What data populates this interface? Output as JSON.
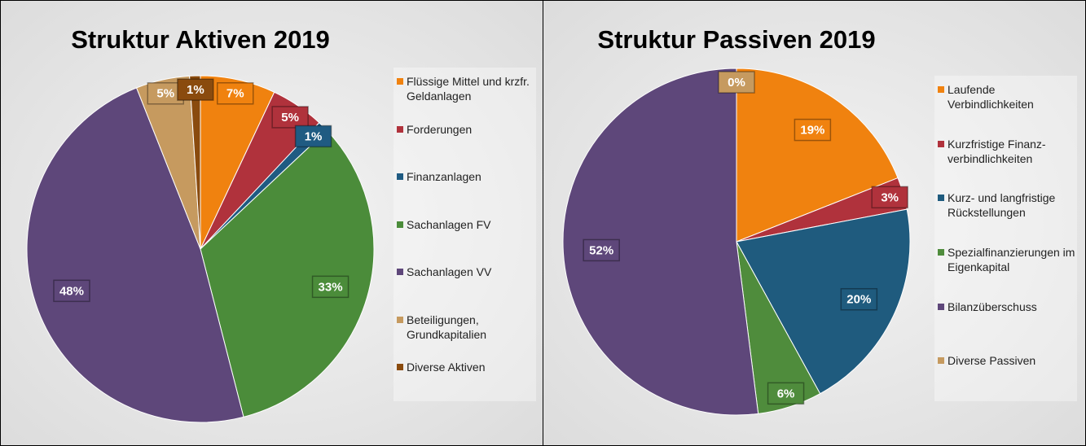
{
  "chart_data": [
    {
      "type": "pie",
      "title": "Struktur Aktiven 2019",
      "categories": [
        "Flüssige Mittel und krzfr. Geldanlagen",
        "Forderungen",
        "Finanzanlagen",
        "Sachanlagen FV",
        "Sachanlagen VV",
        "Beteiligungen, Grundkapitalien",
        "Diverse Aktiven"
      ],
      "values": [
        7,
        5,
        1,
        33,
        48,
        5,
        1
      ],
      "value_labels": [
        "7%",
        "5%",
        "1%",
        "33%",
        "48%",
        "5%",
        "1%"
      ],
      "colors": [
        "#f0820f",
        "#b0323c",
        "#1f5b82",
        "#4b8c3a",
        "#5e477a",
        "#c69a5f",
        "#8a4b0e"
      ],
      "legend": "right"
    },
    {
      "type": "pie",
      "title": "Struktur Passiven 2019",
      "categories": [
        "Laufende Verbindlichkeiten",
        "Kurzfristige Finanz-verbindlichkeiten",
        "Kurz- und langfristige Rückstellungen",
        "Spezialfinanzierungen im Eigenkapital",
        "Bilanzüberschuss",
        "Diverse Passiven"
      ],
      "values": [
        19,
        3,
        20,
        6,
        52,
        0
      ],
      "value_labels": [
        "19%",
        "3%",
        "20%",
        "6%",
        "52%",
        "0%"
      ],
      "colors": [
        "#f0820f",
        "#b0323c",
        "#1f5b7e",
        "#4f8c3c",
        "#5e477a",
        "#c69a5f"
      ],
      "legend": "right"
    }
  ]
}
